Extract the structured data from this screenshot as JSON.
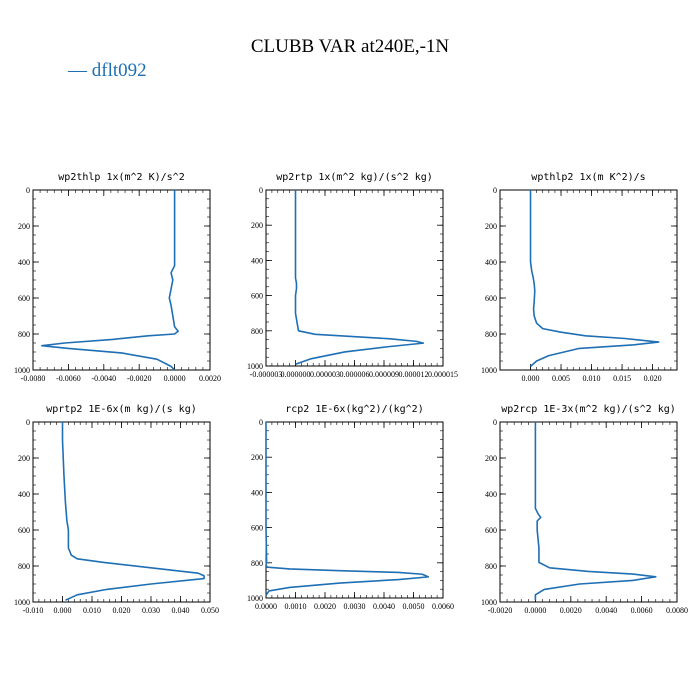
{
  "title": "CLUBB VAR at240E,-1N",
  "legend": {
    "marker": "—",
    "label": "dflt092",
    "color": "#1f6fb4"
  },
  "chart_data": [
    {
      "type": "line",
      "title": "wp2thlp   1x(m^2 K)/s^2",
      "xlim": [
        -0.008,
        0.002
      ],
      "xticks": [
        -0.008,
        -0.006,
        -0.004,
        -0.002,
        0,
        0.002
      ],
      "xtick_labels": [
        "-0.0080",
        "-0.0060",
        "-0.0040",
        "-0.0020",
        "0.0000",
        "0.0020"
      ],
      "ylim": [
        0,
        1000
      ],
      "yticks": [
        0,
        200,
        400,
        600,
        800,
        1000
      ],
      "ytick_labels": [
        "0",
        "200",
        "400",
        "600",
        "800",
        "1000"
      ],
      "series": [
        {
          "color": "#1f6fb4",
          "x": [
            0,
            0,
            0,
            0,
            0,
            -0.0002,
            -0.0001,
            -0.0002,
            -0.0003,
            -0.0002,
            -0.0001,
            0,
            0.0002,
            0,
            -0.0015,
            -0.0035,
            -0.0062,
            -0.0075,
            -0.006,
            -0.003,
            -0.001,
            -0.0002,
            0
          ],
          "y": [
            0,
            100,
            200,
            300,
            420,
            460,
            500,
            550,
            600,
            640,
            700,
            760,
            785,
            800,
            810,
            830,
            850,
            865,
            880,
            905,
            940,
            980,
            1000
          ]
        }
      ]
    },
    {
      "type": "line",
      "title": "wp2rtp   1x(m^2 kg)/(s^2 kg)",
      "xlim": [
        -3e-06,
        1.5e-05
      ],
      "xticks": [
        -3e-06,
        0,
        3e-06,
        6e-06,
        9e-06,
        1.2e-05,
        1.5e-05
      ],
      "xtick_labels": [
        "-0.000003",
        "0.000000",
        "0.000003",
        "0.000006",
        "0.000009",
        "0.000012",
        "0.000015"
      ],
      "ylim": [
        0,
        1000
      ],
      "yticks": [
        0,
        200,
        400,
        600,
        800,
        1000
      ],
      "ytick_labels": [
        "0",
        "200",
        "400",
        "600",
        "800",
        "1000"
      ],
      "series": [
        {
          "color": "#1f6fb4",
          "x": [
            0,
            0,
            0,
            0,
            0,
            1e-07,
            1e-07,
            0,
            0,
            3e-07,
            2e-06,
            5e-06,
            9.5e-06,
            1.23e-05,
            1.3e-05,
            9.5e-06,
            5e-06,
            1.5e-06,
            0
          ],
          "y": [
            0,
            100,
            300,
            450,
            500,
            530,
            560,
            600,
            700,
            800,
            820,
            830,
            845,
            860,
            870,
            890,
            920,
            960,
            990
          ]
        }
      ]
    },
    {
      "type": "line",
      "title": "wpthlp2   1x(m K^2)/s",
      "xlim": [
        -0.005,
        0.024
      ],
      "xticks": [
        0,
        0.005,
        0.01,
        0.015,
        0.02
      ],
      "xtick_labels": [
        "0.000",
        "0.005",
        "0.010",
        "0.015",
        "0.020"
      ],
      "ylim": [
        0,
        1000
      ],
      "yticks": [
        0,
        200,
        400,
        600,
        800,
        1000
      ],
      "ytick_labels": [
        "0",
        "200",
        "400",
        "600",
        "800",
        "1000"
      ],
      "series": [
        {
          "color": "#1f6fb4",
          "x": [
            0,
            0,
            0,
            0,
            0,
            0.0002,
            0.0004,
            0.0006,
            0.0007,
            0.0006,
            0.0005,
            0.0006,
            0.001,
            0.002,
            0.005,
            0.009,
            0.0155,
            0.021,
            0.017,
            0.008,
            0.003,
            0.001,
            0
          ],
          "y": [
            0,
            100,
            200,
            300,
            400,
            450,
            480,
            520,
            560,
            620,
            660,
            700,
            740,
            770,
            790,
            810,
            825,
            845,
            860,
            880,
            920,
            950,
            980
          ]
        }
      ]
    },
    {
      "type": "line",
      "title": "wprtp2   1E-6x(m kg)/(s kg)",
      "xlim": [
        -0.01,
        0.05
      ],
      "xticks": [
        -0.01,
        0,
        0.01,
        0.02,
        0.03,
        0.04,
        0.05
      ],
      "xtick_labels": [
        "-0.010",
        "0.000",
        "0.010",
        "0.020",
        "0.030",
        "0.040",
        "0.050"
      ],
      "ylim": [
        0,
        1000
      ],
      "yticks": [
        0,
        200,
        400,
        600,
        800,
        1000
      ],
      "ytick_labels": [
        "0",
        "200",
        "400",
        "600",
        "800",
        "1000"
      ],
      "series": [
        {
          "color": "#1f6fb4",
          "x": [
            0,
            0,
            0.0005,
            0.001,
            0.0015,
            0.002,
            0.002,
            0.003,
            0.005,
            0.014,
            0.03,
            0.046,
            0.048,
            0.048,
            0.03,
            0.015,
            0.005,
            0.001
          ],
          "y": [
            0,
            100,
            300,
            450,
            550,
            600,
            700,
            740,
            760,
            780,
            810,
            840,
            855,
            870,
            900,
            930,
            960,
            990
          ]
        }
      ]
    },
    {
      "type": "line",
      "title": "rcp2   1E-6x(kg^2)/(kg^2)",
      "xlim": [
        0,
        0.006
      ],
      "xticks": [
        0,
        0.001,
        0.002,
        0.003,
        0.004,
        0.005,
        0.006
      ],
      "xtick_labels": [
        "0.0000",
        "0.0010",
        "0.0020",
        "0.0030",
        "0.0040",
        "0.0050",
        "0.0060"
      ],
      "ylim": [
        0,
        1000
      ],
      "yticks": [
        0,
        200,
        400,
        600,
        800,
        1000
      ],
      "ytick_labels": [
        "0",
        "200",
        "400",
        "600",
        "800",
        "1000"
      ],
      "series": [
        {
          "color": "#1f6fb4",
          "x": [
            0,
            0,
            0,
            0,
            2e-05,
            0,
            5e-05,
            0.0008,
            0.0025,
            0.0045,
            0.0053,
            0.0055,
            0.0045,
            0.0025,
            0.0008,
            0.0001,
            0
          ],
          "y": [
            0,
            200,
            400,
            600,
            790,
            815,
            825,
            835,
            845,
            855,
            865,
            880,
            895,
            915,
            940,
            960,
            985
          ]
        }
      ]
    },
    {
      "type": "line",
      "title": "wp2rcp   1E-3x(m^2 kg)/(s^2 kg)",
      "xlim": [
        -0.002,
        0.008
      ],
      "xticks": [
        -0.002,
        0,
        0.002,
        0.004,
        0.006,
        0.008
      ],
      "xtick_labels": [
        "-0.0020",
        "0.0000",
        "0.0020",
        "0.0040",
        "0.0060",
        "0.0080"
      ],
      "ylim": [
        0,
        1000
      ],
      "yticks": [
        0,
        200,
        400,
        600,
        800,
        1000
      ],
      "ytick_labels": [
        "0",
        "200",
        "400",
        "600",
        "800",
        "1000"
      ],
      "series": [
        {
          "color": "#1f6fb4",
          "x": [
            0,
            0,
            0,
            0,
            0.00015,
            0.0003,
            0.0001,
            0.0001,
            0.0002,
            0.0002,
            0.0008,
            0.003,
            0.0055,
            0.0068,
            0.0055,
            0.0025,
            0.0005,
            0,
            0
          ],
          "y": [
            0,
            100,
            300,
            480,
            510,
            530,
            550,
            600,
            700,
            780,
            810,
            830,
            845,
            860,
            880,
            900,
            930,
            960,
            990
          ]
        }
      ]
    }
  ]
}
